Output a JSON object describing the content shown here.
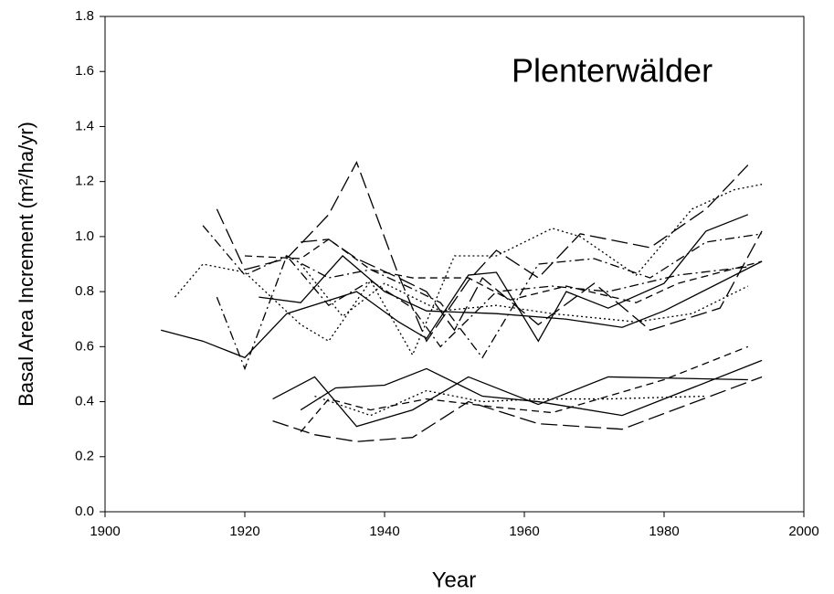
{
  "chart_data": {
    "type": "line",
    "annotation": "Plenterwälder",
    "xlabel": "Year",
    "ylabel": "Basal Area Increment (m²/ha/yr)",
    "xlim": [
      1900,
      2000
    ],
    "xticks": [
      1900,
      1920,
      1940,
      1960,
      1980,
      2000
    ],
    "ylim": [
      0,
      1.8
    ],
    "yticks": [
      {
        "value": 0,
        "label": "0.0"
      },
      0.2,
      0.4,
      0.6,
      0.8,
      {
        "value": 1,
        "label": "1.0"
      },
      1.2,
      1.4,
      1.6,
      1.8
    ],
    "grid": false,
    "series": [
      {
        "color": "#000000",
        "dash": "solid",
        "x": [
          1924,
          1930,
          1936,
          1944,
          1952,
          1962,
          1972,
          1992
        ],
        "values": [
          0.41,
          0.49,
          0.31,
          0.37,
          0.49,
          0.39,
          0.49,
          0.48
        ]
      },
      {
        "color": "#000000",
        "dash": "solid",
        "x": [
          1928,
          1933,
          1940,
          1946,
          1954,
          1962,
          1974,
          1994
        ],
        "values": [
          0.37,
          0.45,
          0.46,
          0.52,
          0.42,
          0.4,
          0.35,
          0.55
        ]
      },
      {
        "color": "#000000",
        "dash": "long-dash",
        "x": [
          1924,
          1930,
          1936,
          1944,
          1952,
          1962,
          1974,
          1994
        ],
        "values": [
          0.33,
          0.28,
          0.255,
          0.27,
          0.4,
          0.32,
          0.3,
          0.49
        ]
      },
      {
        "color": "#000000",
        "dash": "dashed",
        "x": [
          1928,
          1932,
          1938,
          1946,
          1956,
          1964,
          1980,
          1992
        ],
        "values": [
          0.29,
          0.41,
          0.37,
          0.41,
          0.38,
          0.36,
          0.48,
          0.6
        ]
      },
      {
        "color": "#000000",
        "dash": "dotted",
        "x": [
          1930,
          1938,
          1946,
          1954,
          1962,
          1972,
          1986
        ],
        "values": [
          0.42,
          0.35,
          0.44,
          0.4,
          0.41,
          0.41,
          0.42
        ]
      },
      {
        "color": "#000000",
        "dash": "solid",
        "x": [
          1908,
          1914,
          1920,
          1926,
          1936,
          1942,
          1946,
          1952,
          1956,
          1962,
          1966,
          1972,
          1980,
          1986,
          1992
        ],
        "values": [
          0.66,
          0.62,
          0.56,
          0.72,
          0.8,
          0.69,
          0.63,
          0.86,
          0.87,
          0.62,
          0.8,
          0.74,
          0.83,
          1.02,
          1.08
        ]
      },
      {
        "color": "#000000",
        "dash": "dotted",
        "x": [
          1910,
          1914,
          1920,
          1928,
          1932,
          1938,
          1944,
          1950,
          1956,
          1964,
          1968,
          1976,
          1984,
          1990,
          1994
        ],
        "values": [
          0.78,
          0.9,
          0.87,
          0.68,
          0.62,
          0.84,
          0.57,
          0.93,
          0.93,
          1.03,
          1.0,
          0.86,
          1.1,
          1.17,
          1.19
        ]
      },
      {
        "color": "#000000",
        "dash": "long-dash",
        "x": [
          1916,
          1920,
          1926,
          1932,
          1936,
          1942,
          1946,
          1952,
          1956,
          1962,
          1968,
          1978,
          1986,
          1992
        ],
        "values": [
          1.1,
          0.88,
          0.92,
          1.08,
          1.27,
          0.86,
          0.62,
          0.84,
          0.95,
          0.85,
          1.01,
          0.96,
          1.1,
          1.26
        ]
      },
      {
        "color": "#000000",
        "dash": "dash-dot",
        "x": [
          1914,
          1920,
          1926,
          1932,
          1938,
          1944,
          1948,
          1954,
          1962,
          1970,
          1978,
          1986,
          1994
        ],
        "values": [
          1.04,
          0.86,
          0.93,
          0.85,
          0.88,
          0.81,
          0.76,
          0.56,
          0.9,
          0.92,
          0.85,
          0.98,
          1.01
        ]
      },
      {
        "color": "#000000",
        "dash": "dashed",
        "x": [
          1920,
          1928,
          1932,
          1938,
          1944,
          1952,
          1958,
          1966,
          1976,
          1982,
          1994
        ],
        "values": [
          0.93,
          0.92,
          0.99,
          0.88,
          0.85,
          0.85,
          0.77,
          0.82,
          0.76,
          0.83,
          0.91
        ]
      },
      {
        "color": "#000000",
        "dash": "dash-dot",
        "x": [
          1916,
          1920,
          1926,
          1932,
          1938,
          1944,
          1948,
          1956,
          1964,
          1972,
          1982,
          1992
        ],
        "values": [
          0.78,
          0.52,
          0.93,
          0.75,
          0.84,
          0.74,
          0.6,
          0.8,
          0.82,
          0.8,
          0.86,
          0.89
        ]
      },
      {
        "color": "#000000",
        "dash": "solid",
        "x": [
          1922,
          1928,
          1934,
          1940,
          1946,
          1956,
          1966,
          1974,
          1980,
          1994
        ],
        "values": [
          0.78,
          0.76,
          0.93,
          0.8,
          0.73,
          0.72,
          0.7,
          0.67,
          0.73,
          0.91
        ]
      },
      {
        "color": "#000000",
        "dash": "dotted",
        "x": [
          1928,
          1934,
          1940,
          1948,
          1956,
          1964,
          1976,
          1984,
          1992
        ],
        "values": [
          0.9,
          0.71,
          0.83,
          0.73,
          0.75,
          0.72,
          0.69,
          0.72,
          0.82
        ]
      },
      {
        "color": "#000000",
        "dash": "long-dash",
        "x": [
          1928,
          1932,
          1936,
          1942,
          1946,
          1950,
          1954,
          1962,
          1970,
          1978,
          1988,
          1994
        ],
        "values": [
          0.98,
          0.99,
          0.92,
          0.85,
          0.8,
          0.66,
          0.85,
          0.68,
          0.83,
          0.66,
          0.74,
          1.02
        ]
      }
    ]
  }
}
